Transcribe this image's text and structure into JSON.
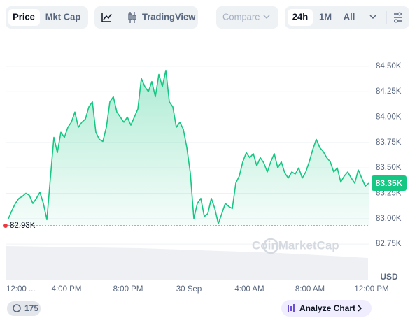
{
  "toolbar": {
    "price": "Price",
    "mkt_cap": "Mkt Cap",
    "tradingview": "TradingView",
    "compare": "Compare",
    "range_24h": "24h",
    "range_1m": "1M",
    "range_all": "All"
  },
  "footer": {
    "count": "175",
    "analyze": "Analyze Chart"
  },
  "chart_data": {
    "type": "line",
    "watermark": "CoinMarketCap",
    "y_unit": "USD",
    "current_price": {
      "value": 83350,
      "label": "83.35K"
    },
    "low": {
      "value": 82930,
      "label": "82.93K"
    },
    "xlim": [
      -0.9,
      103.8
    ],
    "xticks": [
      {
        "value": -0.9,
        "label": "12:00 ..."
      },
      {
        "value": 16.6,
        "label": "4:00 PM"
      },
      {
        "value": 34.2,
        "label": "8:00 PM"
      },
      {
        "value": 51.6,
        "label": "30 Sep"
      },
      {
        "value": 68.9,
        "label": "4:00 AM"
      },
      {
        "value": 86.2,
        "label": "8:00 AM"
      },
      {
        "value": 103.8,
        "label": "12:00 PM"
      }
    ],
    "ylim": [
      82400,
      84740
    ],
    "yticks": [
      {
        "value": 82750,
        "label": "82.75K"
      },
      {
        "value": 83000,
        "label": "83.00K"
      },
      {
        "value": 83250,
        "label": "83.25K"
      },
      {
        "value": 83500,
        "label": "83.50K"
      },
      {
        "value": 83750,
        "label": "83.75K"
      },
      {
        "value": 84000,
        "label": "84.00K"
      },
      {
        "value": 84250,
        "label": "84.25K"
      },
      {
        "value": 84500,
        "label": "84.50K"
      }
    ],
    "grid": true,
    "series": [
      {
        "color": "#16c784",
        "values": [
          83000,
          83080,
          83150,
          83200,
          83220,
          83250,
          83230,
          83150,
          83200,
          83260,
          83150,
          82990,
          83400,
          83800,
          83650,
          83850,
          83800,
          83900,
          83950,
          84050,
          83900,
          83950,
          83980,
          84100,
          84150,
          83850,
          83780,
          83760,
          83900,
          84150,
          84200,
          84050,
          84000,
          83950,
          84000,
          83920,
          84000,
          84080,
          84380,
          84300,
          84250,
          84350,
          84200,
          84420,
          84300,
          84460,
          84150,
          84100,
          83900,
          83950,
          83880,
          83700,
          83450,
          83000,
          83150,
          83200,
          83020,
          83050,
          83200,
          83100,
          82950,
          83050,
          83150,
          83120,
          83100,
          83350,
          83420,
          83560,
          83650,
          83600,
          83640,
          83520,
          83600,
          83550,
          83460,
          83560,
          83640,
          83500,
          83560,
          83450,
          83400,
          83460,
          83440,
          83500,
          83400,
          83460,
          83560,
          83680,
          83780,
          83700,
          83660,
          83600,
          83560,
          83460,
          83500,
          83360,
          83420,
          83460,
          83400,
          83350,
          83480,
          83400,
          83320,
          83350
        ]
      }
    ]
  }
}
